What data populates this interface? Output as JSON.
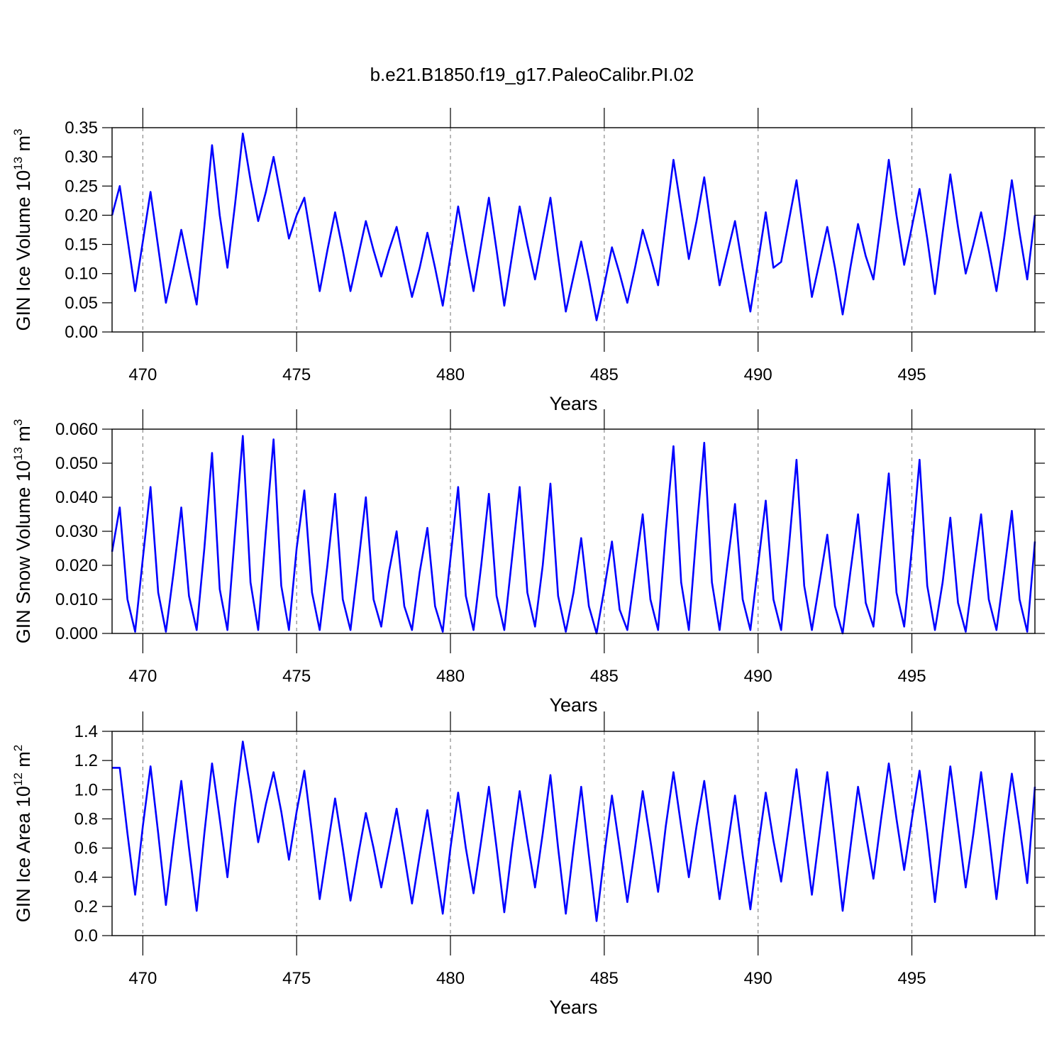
{
  "title": "b.e21.B1850.f19_g17.PaleoCalibr.PI.02",
  "chart_data": [
    {
      "type": "line",
      "xlabel": "Years",
      "ylabel": [
        "GIN Ice Volume 10",
        "13",
        " m",
        "3"
      ],
      "xlim": [
        469,
        499
      ],
      "xticks": [
        470,
        475,
        480,
        485,
        490,
        495
      ],
      "ylim": [
        0,
        0.35
      ],
      "yticks": [
        {
          "value": 0,
          "label": "0.00"
        },
        0.05,
        {
          "value": 0.1,
          "label": "0.10"
        },
        0.15,
        {
          "value": 0.2,
          "label": "0.20"
        },
        0.25,
        {
          "value": 0.3,
          "label": "0.30"
        },
        0.35
      ],
      "xgrid": true,
      "color": "#0000ff",
      "x": [
        469,
        469.25,
        469.5,
        469.75,
        470,
        470.25,
        470.5,
        470.75,
        471,
        471.25,
        471.5,
        471.75,
        472,
        472.25,
        472.5,
        472.75,
        473,
        473.25,
        473.5,
        473.75,
        474,
        474.25,
        474.5,
        474.75,
        475,
        475.25,
        475.5,
        475.75,
        476,
        476.25,
        476.5,
        476.75,
        477,
        477.25,
        477.5,
        477.75,
        478,
        478.25,
        478.5,
        478.75,
        479,
        479.25,
        479.5,
        479.75,
        480,
        480.25,
        480.5,
        480.75,
        481,
        481.25,
        481.5,
        481.75,
        482,
        482.25,
        482.5,
        482.75,
        483,
        483.25,
        483.5,
        483.75,
        484,
        484.25,
        484.5,
        484.75,
        485,
        485.25,
        485.5,
        485.75,
        486,
        486.25,
        486.5,
        486.75,
        487,
        487.25,
        487.5,
        487.75,
        488,
        488.25,
        488.5,
        488.75,
        489,
        489.25,
        489.5,
        489.75,
        490,
        490.25,
        490.5,
        490.75,
        491,
        491.25,
        491.5,
        491.75,
        492,
        492.25,
        492.5,
        492.75,
        493,
        493.25,
        493.5,
        493.75,
        494,
        494.25,
        494.5,
        494.75,
        495,
        495.25,
        495.5,
        495.75,
        496,
        496.25,
        496.5,
        496.75,
        497,
        497.25,
        497.5,
        497.75,
        498,
        498.25,
        498.5,
        498.75,
        499
      ],
      "values": [
        0.2,
        0.25,
        0.16,
        0.07,
        0.155,
        0.24,
        0.145,
        0.05,
        0.11,
        0.175,
        0.11,
        0.047,
        0.18,
        0.32,
        0.2,
        0.11,
        0.22,
        0.34,
        0.26,
        0.19,
        0.24,
        0.3,
        0.23,
        0.16,
        0.2,
        0.23,
        0.15,
        0.07,
        0.14,
        0.205,
        0.14,
        0.07,
        0.13,
        0.19,
        0.14,
        0.095,
        0.14,
        0.18,
        0.12,
        0.06,
        0.11,
        0.17,
        0.11,
        0.045,
        0.13,
        0.215,
        0.14,
        0.07,
        0.15,
        0.23,
        0.14,
        0.045,
        0.13,
        0.215,
        0.15,
        0.09,
        0.16,
        0.23,
        0.13,
        0.035,
        0.095,
        0.155,
        0.09,
        0.02,
        0.08,
        0.145,
        0.1,
        0.05,
        0.11,
        0.175,
        0.13,
        0.08,
        0.19,
        0.295,
        0.21,
        0.125,
        0.19,
        0.265,
        0.17,
        0.08,
        0.135,
        0.19,
        0.11,
        0.035,
        0.12,
        0.205,
        0.11,
        0.12,
        0.19,
        0.26,
        0.16,
        0.06,
        0.12,
        0.18,
        0.11,
        0.03,
        0.11,
        0.185,
        0.13,
        0.09,
        0.19,
        0.295,
        0.2,
        0.115,
        0.18,
        0.245,
        0.16,
        0.065,
        0.17,
        0.27,
        0.18,
        0.1,
        0.15,
        0.205,
        0.14,
        0.07,
        0.16,
        0.26,
        0.17,
        0.09,
        0.2
      ]
    },
    {
      "type": "line",
      "xlabel": "Years",
      "ylabel": [
        "GIN Snow Volume 10",
        "13",
        " m",
        "3"
      ],
      "xlim": [
        469,
        499
      ],
      "xticks": [
        470,
        475,
        480,
        485,
        490,
        495
      ],
      "ylim": [
        0,
        0.06
      ],
      "yticks": [
        {
          "value": 0,
          "label": "0.000"
        },
        {
          "value": 0.01,
          "label": "0.010"
        },
        {
          "value": 0.02,
          "label": "0.020"
        },
        {
          "value": 0.03,
          "label": "0.030"
        },
        {
          "value": 0.04,
          "label": "0.040"
        },
        {
          "value": 0.05,
          "label": "0.050"
        },
        {
          "value": 0.06,
          "label": "0.060"
        }
      ],
      "xgrid": true,
      "color": "#0000ff",
      "x": [
        469,
        469.25,
        469.5,
        469.75,
        470,
        470.25,
        470.5,
        470.75,
        471,
        471.25,
        471.5,
        471.75,
        472,
        472.25,
        472.5,
        472.75,
        473,
        473.25,
        473.5,
        473.75,
        474,
        474.25,
        474.5,
        474.75,
        475,
        475.25,
        475.5,
        475.75,
        476,
        476.25,
        476.5,
        476.75,
        477,
        477.25,
        477.5,
        477.75,
        478,
        478.25,
        478.5,
        478.75,
        479,
        479.25,
        479.5,
        479.75,
        480,
        480.25,
        480.5,
        480.75,
        481,
        481.25,
        481.5,
        481.75,
        482,
        482.25,
        482.5,
        482.75,
        483,
        483.25,
        483.5,
        483.75,
        484,
        484.25,
        484.5,
        484.75,
        485,
        485.25,
        485.5,
        485.75,
        486,
        486.25,
        486.5,
        486.75,
        487,
        487.25,
        487.5,
        487.75,
        488,
        488.25,
        488.5,
        488.75,
        489,
        489.25,
        489.5,
        489.75,
        490,
        490.25,
        490.5,
        490.75,
        491,
        491.25,
        491.5,
        491.75,
        492,
        492.25,
        492.5,
        492.75,
        493,
        493.25,
        493.5,
        493.75,
        494,
        494.25,
        494.5,
        494.75,
        495,
        495.25,
        495.5,
        495.75,
        496,
        496.25,
        496.5,
        496.75,
        497,
        497.25,
        497.5,
        497.75,
        498,
        498.25,
        498.5,
        498.75,
        499
      ],
      "values": [
        0.024,
        0.037,
        0.01,
        0.0005,
        0.022,
        0.043,
        0.012,
        0.0005,
        0.018,
        0.037,
        0.011,
        0.001,
        0.025,
        0.053,
        0.013,
        0.001,
        0.03,
        0.058,
        0.015,
        0.001,
        0.03,
        0.057,
        0.014,
        0.001,
        0.025,
        0.042,
        0.012,
        0.001,
        0.02,
        0.041,
        0.01,
        0.001,
        0.02,
        0.04,
        0.01,
        0.002,
        0.018,
        0.03,
        0.008,
        0.001,
        0.018,
        0.031,
        0.008,
        0.0005,
        0.022,
        0.043,
        0.011,
        0.001,
        0.02,
        0.041,
        0.011,
        0.001,
        0.022,
        0.043,
        0.012,
        0.002,
        0.02,
        0.044,
        0.011,
        0.0005,
        0.012,
        0.028,
        0.008,
        0,
        0.013,
        0.027,
        0.007,
        0.001,
        0.018,
        0.035,
        0.01,
        0.001,
        0.03,
        0.055,
        0.015,
        0.001,
        0.03,
        0.056,
        0.015,
        0.001,
        0.02,
        0.038,
        0.01,
        0.001,
        0.02,
        0.039,
        0.01,
        0.001,
        0.025,
        0.051,
        0.014,
        0.001,
        0.015,
        0.029,
        0.008,
        0,
        0.018,
        0.035,
        0.009,
        0.002,
        0.025,
        0.047,
        0.012,
        0.002,
        0.025,
        0.051,
        0.014,
        0.001,
        0.015,
        0.034,
        0.009,
        0.0005,
        0.018,
        0.035,
        0.01,
        0.001,
        0.018,
        0.036,
        0.01,
        0.0005,
        0.027
      ]
    },
    {
      "type": "line",
      "xlabel": "Years",
      "ylabel": [
        "GIN Ice Area 10",
        "12",
        " m",
        "2"
      ],
      "xlim": [
        469,
        499
      ],
      "xticks": [
        470,
        475,
        480,
        485,
        490,
        495
      ],
      "ylim": [
        0,
        1.4
      ],
      "yticks": [
        {
          "value": 0,
          "label": "0.0"
        },
        0.2,
        0.4,
        0.6,
        0.8,
        {
          "value": 1,
          "label": "1.0"
        },
        1.2,
        1.4
      ],
      "xgrid": true,
      "color": "#0000ff",
      "x": [
        469,
        469.25,
        469.5,
        469.75,
        470,
        470.25,
        470.5,
        470.75,
        471,
        471.25,
        471.5,
        471.75,
        472,
        472.25,
        472.5,
        472.75,
        473,
        473.25,
        473.5,
        473.75,
        474,
        474.25,
        474.5,
        474.75,
        475,
        475.25,
        475.5,
        475.75,
        476,
        476.25,
        476.5,
        476.75,
        477,
        477.25,
        477.5,
        477.75,
        478,
        478.25,
        478.5,
        478.75,
        479,
        479.25,
        479.5,
        479.75,
        480,
        480.25,
        480.5,
        480.75,
        481,
        481.25,
        481.5,
        481.75,
        482,
        482.25,
        482.5,
        482.75,
        483,
        483.25,
        483.5,
        483.75,
        484,
        484.25,
        484.5,
        484.75,
        485,
        485.25,
        485.5,
        485.75,
        486,
        486.25,
        486.5,
        486.75,
        487,
        487.25,
        487.5,
        487.75,
        488,
        488.25,
        488.5,
        488.75,
        489,
        489.25,
        489.5,
        489.75,
        490,
        490.25,
        490.5,
        490.75,
        491,
        491.25,
        491.5,
        491.75,
        492,
        492.25,
        492.5,
        492.75,
        493,
        493.25,
        493.5,
        493.75,
        494,
        494.25,
        494.5,
        494.75,
        495,
        495.25,
        495.5,
        495.75,
        496,
        496.25,
        496.5,
        496.75,
        497,
        497.25,
        497.5,
        497.75,
        498,
        498.25,
        498.5,
        498.75,
        499
      ],
      "values": [
        1.15,
        1.15,
        0.7,
        0.28,
        0.75,
        1.16,
        0.7,
        0.21,
        0.65,
        1.06,
        0.6,
        0.17,
        0.7,
        1.18,
        0.8,
        0.4,
        0.9,
        1.33,
        1.0,
        0.64,
        0.9,
        1.12,
        0.85,
        0.52,
        0.85,
        1.13,
        0.7,
        0.25,
        0.6,
        0.94,
        0.6,
        0.24,
        0.55,
        0.84,
        0.6,
        0.33,
        0.6,
        0.87,
        0.55,
        0.22,
        0.55,
        0.86,
        0.5,
        0.15,
        0.6,
        0.98,
        0.6,
        0.29,
        0.65,
        1.02,
        0.6,
        0.16,
        0.6,
        0.99,
        0.65,
        0.33,
        0.7,
        1.1,
        0.6,
        0.15,
        0.6,
        1.02,
        0.55,
        0.1,
        0.55,
        0.96,
        0.6,
        0.23,
        0.6,
        0.99,
        0.65,
        0.3,
        0.75,
        1.12,
        0.75,
        0.4,
        0.75,
        1.06,
        0.65,
        0.25,
        0.6,
        0.96,
        0.55,
        0.18,
        0.6,
        0.98,
        0.65,
        0.37,
        0.75,
        1.14,
        0.7,
        0.28,
        0.7,
        1.12,
        0.65,
        0.17,
        0.6,
        1.02,
        0.7,
        0.39,
        0.8,
        1.18,
        0.8,
        0.45,
        0.8,
        1.13,
        0.7,
        0.23,
        0.7,
        1.16,
        0.75,
        0.33,
        0.7,
        1.12,
        0.7,
        0.25,
        0.7,
        1.11,
        0.75,
        0.36,
        1.02
      ]
    }
  ]
}
